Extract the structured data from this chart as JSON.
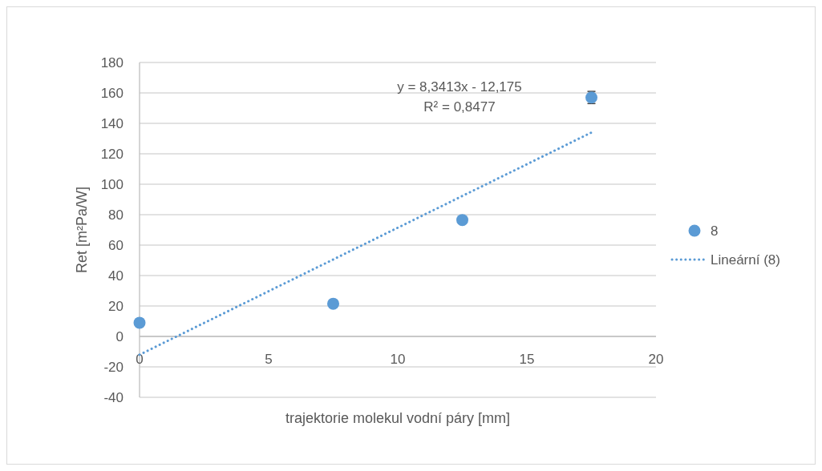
{
  "chart_data": {
    "type": "scatter",
    "xlabel": "trajektorie molekul vodní páry [mm]",
    "ylabel": "Ret [m²Pa/W]",
    "xlim": [
      0,
      20
    ],
    "xticks": [
      0,
      5,
      10,
      15,
      20
    ],
    "ylim": [
      -40,
      180
    ],
    "yticks": [
      -40,
      -20,
      0,
      20,
      40,
      60,
      80,
      100,
      120,
      140,
      160,
      180
    ],
    "grid": "y",
    "legend": "right",
    "annotations": [
      "y = 8,3413x - 12,175",
      "R² = 0,8477"
    ],
    "series": [
      {
        "name": "8",
        "color": "#5b9bd5",
        "marker": "circle",
        "x": [
          0,
          7.5,
          12.5,
          17.5
        ],
        "values": [
          9,
          21.5,
          76.5,
          157
        ],
        "errors": [
          null,
          null,
          null,
          4
        ]
      },
      {
        "name": "Lineární (8)",
        "type": "line",
        "color": "#5b9bd5",
        "marker": "none",
        "line_style": "dotted",
        "x": [
          0,
          17.5
        ],
        "values": [
          -12,
          134
        ]
      }
    ]
  }
}
